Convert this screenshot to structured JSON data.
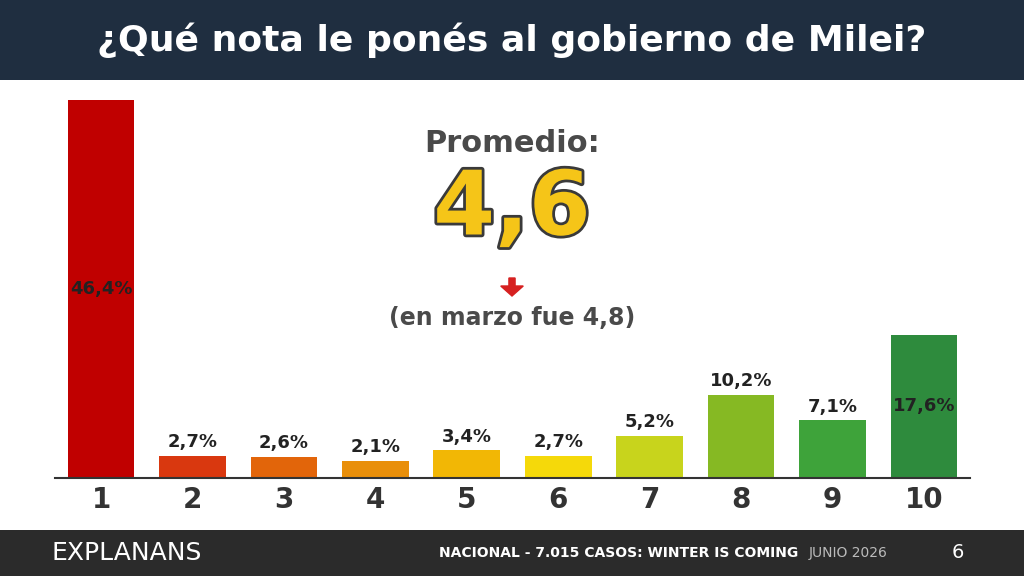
{
  "chart_data": {
    "type": "bar",
    "title": "¿Qué nota le ponés al gobierno de Milei?",
    "categories": [
      "1",
      "2",
      "3",
      "4",
      "5",
      "6",
      "7",
      "8",
      "9",
      "10"
    ],
    "values": [
      46.4,
      2.7,
      2.6,
      2.1,
      3.4,
      2.7,
      5.2,
      10.2,
      7.1,
      17.6
    ],
    "value_labels": [
      "46,4%",
      "2,7%",
      "2,6%",
      "2,1%",
      "3,4%",
      "2,7%",
      "5,2%",
      "10,2%",
      "7,1%",
      "17,6%"
    ],
    "colors": [
      "#c00000",
      "#d9380f",
      "#e2650a",
      "#e98f0a",
      "#f2b705",
      "#f5d90a",
      "#c8d41c",
      "#86b923",
      "#3ea33a",
      "#2e8b3d"
    ],
    "data_labels": true,
    "tick_labels": "x",
    "annotations": [
      "Promedio:",
      "4,6",
      "(en marzo fue 4,8)"
    ],
    "footer": {
      "brand": "EXPLANANS",
      "note": "NACIONAL - 7.015 CASOS: WINTER IS COMING",
      "date": "JUNIO 2026",
      "page": "6"
    }
  }
}
